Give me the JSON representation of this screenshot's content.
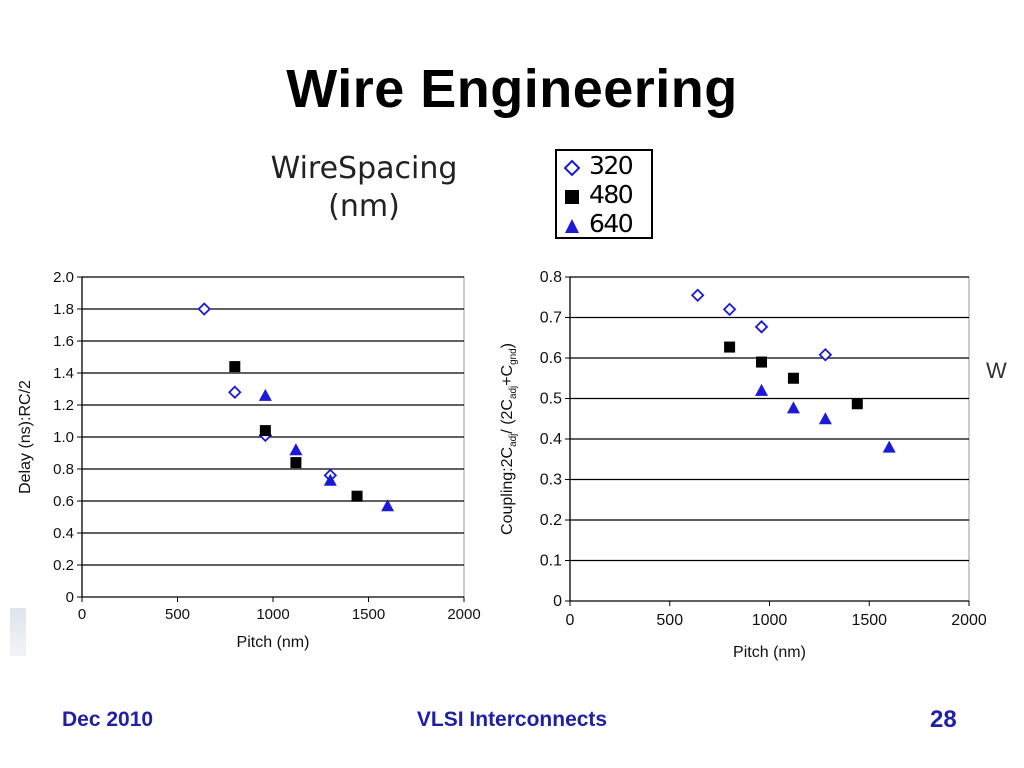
{
  "slide": {
    "title": "Wire Engineering",
    "footer_left": "Dec 2010",
    "footer_center": "VLSI Interconnects",
    "footer_right": "28",
    "edge_text": "W"
  },
  "legend": {
    "title_line1": "WireSpacing",
    "title_line2": "(nm)",
    "items": [
      {
        "label": "320",
        "marker": "diamond-open",
        "color": "#1a1ad8"
      },
      {
        "label": "480",
        "marker": "square",
        "color": "#000000"
      },
      {
        "label": "640",
        "marker": "triangle",
        "color": "#1a1ad8"
      }
    ]
  },
  "chart_data": [
    {
      "type": "scatter",
      "xlabel": "Pitch (nm)",
      "ylabel": "Delay (ns):RC/2",
      "xlim": [
        0,
        2000
      ],
      "ylim": [
        0,
        2.0
      ],
      "xticks": [
        "0",
        "500",
        "1000",
        "1500",
        "2000"
      ],
      "yticks": [
        "0",
        "0.2",
        "0.4",
        "0.6",
        "0.8",
        "1.0",
        "1.2",
        "1.4",
        "1.6",
        "1.8",
        "2.0"
      ],
      "grid": "horizontal",
      "series": [
        {
          "name": "320",
          "marker": "diamond-open",
          "color": "#1a1ad8",
          "x": [
            640,
            800,
            960,
            1300
          ],
          "y": [
            1.8,
            1.28,
            1.01,
            0.76
          ]
        },
        {
          "name": "480",
          "marker": "square",
          "color": "#000000",
          "x": [
            800,
            960,
            1120,
            1440
          ],
          "y": [
            1.44,
            1.04,
            0.84,
            0.63
          ]
        },
        {
          "name": "640",
          "marker": "triangle",
          "color": "#1a1ad8",
          "x": [
            960,
            1120,
            1300,
            1600
          ],
          "y": [
            1.26,
            0.92,
            0.73,
            0.57
          ]
        }
      ]
    },
    {
      "type": "scatter",
      "xlabel": "Pitch (nm)",
      "ylabel": "Coupling:2Cadj/(2Cadj+Cgnd)",
      "ylabel_parts": [
        "Coupling:2C",
        "adj",
        "/ (2C",
        "adj",
        "+C",
        "gnd",
        ")"
      ],
      "xlim": [
        0,
        2000
      ],
      "ylim": [
        0,
        0.8
      ],
      "xticks": [
        "0",
        "500",
        "1000",
        "1500",
        "2000"
      ],
      "yticks": [
        "0",
        "0.1",
        "0.2",
        "0.3",
        "0.4",
        "0.5",
        "0.6",
        "0.7",
        "0.8"
      ],
      "grid": "horizontal",
      "series": [
        {
          "name": "320",
          "marker": "diamond-open",
          "color": "#1a1ad8",
          "x": [
            640,
            800,
            960,
            1280
          ],
          "y": [
            0.755,
            0.72,
            0.677,
            0.608
          ]
        },
        {
          "name": "480",
          "marker": "square",
          "color": "#000000",
          "x": [
            800,
            960,
            1120,
            1440
          ],
          "y": [
            0.627,
            0.59,
            0.55,
            0.487
          ]
        },
        {
          "name": "640",
          "marker": "triangle",
          "color": "#1a1ad8",
          "x": [
            960,
            1120,
            1280,
            1600
          ],
          "y": [
            0.52,
            0.477,
            0.45,
            0.38
          ]
        }
      ]
    }
  ]
}
